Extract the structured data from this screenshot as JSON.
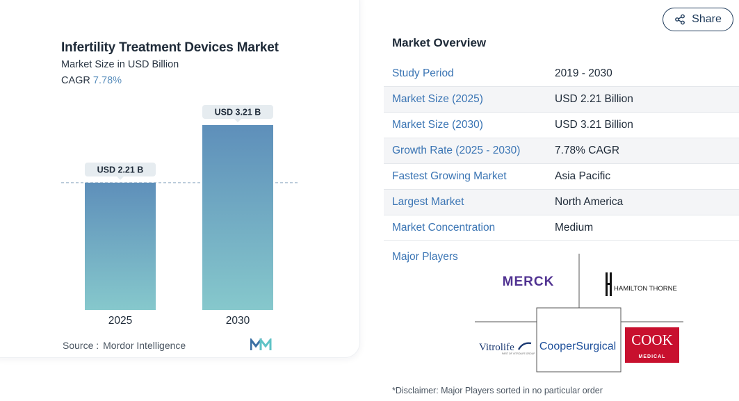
{
  "chart_data": {
    "type": "bar",
    "title": "Infertility Treatment Devices Market",
    "subtitle": "Market Size in USD Billion",
    "cagr_label": "CAGR",
    "cagr_value": "7.78%",
    "categories": [
      "2025",
      "2030"
    ],
    "values": [
      2.21,
      3.21
    ],
    "data_labels": [
      "USD 2.21 B",
      "USD 3.21 B"
    ],
    "reference_line": 2.21,
    "grid": false,
    "colors": {
      "bar_top": "#5e8fba",
      "bar_bottom": "#86c8cc",
      "label_bg": "#e6ecf0",
      "axis_text": "#1e2a38"
    }
  },
  "source": {
    "label": "Source :",
    "value": "Mordor Intelligence"
  },
  "share": {
    "label": "Share",
    "icon": "share-icon"
  },
  "overview": {
    "title": "Market Overview",
    "rows": [
      {
        "label": "Study Period",
        "value": "2019 - 2030"
      },
      {
        "label": "Market Size (2025)",
        "value": "USD 2.21 Billion"
      },
      {
        "label": "Market Size (2030)",
        "value": "USD 3.21 Billion"
      },
      {
        "label": "Growth Rate (2025 - 2030)",
        "value": "7.78% CAGR"
      },
      {
        "label": "Fastest Growing Market",
        "value": "Asia Pacific"
      },
      {
        "label": "Largest Market",
        "value": "North America"
      },
      {
        "label": "Market Concentration",
        "value": "Medium"
      }
    ]
  },
  "major_players": {
    "title": "Major Players",
    "logos": {
      "merck": "MERCK",
      "hamilton": "HAMILTON THORNE",
      "vitrolife": "Vitrolife",
      "vitrolife_sub": "PART OF VITROLIFE GROUP",
      "cooper": "CooperSurgical",
      "cook": "COOK",
      "cook_sub": "MEDICAL"
    }
  },
  "disclaimer": "*Disclaimer: Major Players sorted in no particular order"
}
